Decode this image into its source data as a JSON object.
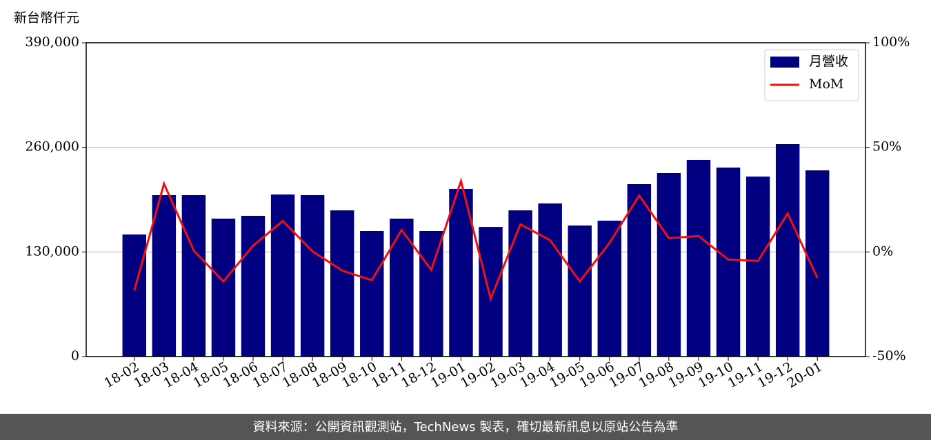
{
  "chart_data": {
    "type": "bar_line",
    "y_unit_label": "新台幣仟元",
    "categories": [
      "18-02",
      "18-03",
      "18-04",
      "18-05",
      "18-06",
      "18-07",
      "18-08",
      "18-09",
      "18-10",
      "18-11",
      "18-12",
      "19-01",
      "19-02",
      "19-03",
      "19-04",
      "19-05",
      "19-06",
      "19-07",
      "19-08",
      "19-09",
      "19-10",
      "19-11",
      "19-12",
      "20-01"
    ],
    "series": [
      {
        "name": "月營收",
        "color": "#000080",
        "kind": "bar",
        "values": [
          151700,
          200600,
          200600,
          171400,
          174900,
          201400,
          200600,
          181700,
          156000,
          171400,
          156000,
          208300,
          161100,
          181700,
          190300,
          162900,
          168900,
          214300,
          228000,
          244300,
          234900,
          223700,
          264000,
          231400
        ]
      },
      {
        "name": "MoM",
        "color": "#ee1111",
        "kind": "line",
        "axis": "y2",
        "values": [
          -18.4,
          32.6,
          0.7,
          -14.1,
          3.0,
          14.8,
          0.3,
          -8.9,
          -13.5,
          10.5,
          -8.6,
          33.9,
          -22.4,
          13.2,
          5.6,
          -14.1,
          4.3,
          27.0,
          6.6,
          7.6,
          -3.6,
          -4.3,
          18.4,
          -12.4
        ]
      }
    ],
    "ylim": [
      0,
      390000
    ],
    "yticks": [
      0,
      {
        "value": 130000,
        "label": "130,000"
      },
      {
        "value": 260000,
        "label": "260,000"
      },
      {
        "value": 390000,
        "label": "390,000"
      }
    ],
    "y2lim": [
      -50,
      100
    ],
    "y2ticks": [
      {
        "value": -50,
        "label": "-50%"
      },
      {
        "value": 0,
        "label": "0%"
      },
      {
        "value": 50,
        "label": "50%"
      },
      {
        "value": 100,
        "label": "100%"
      }
    ],
    "grid": true,
    "legend": "upper right"
  },
  "footer": "資料來源：公開資訊觀測站，TechNews 製表，確切最新訊息以原站公告為準"
}
